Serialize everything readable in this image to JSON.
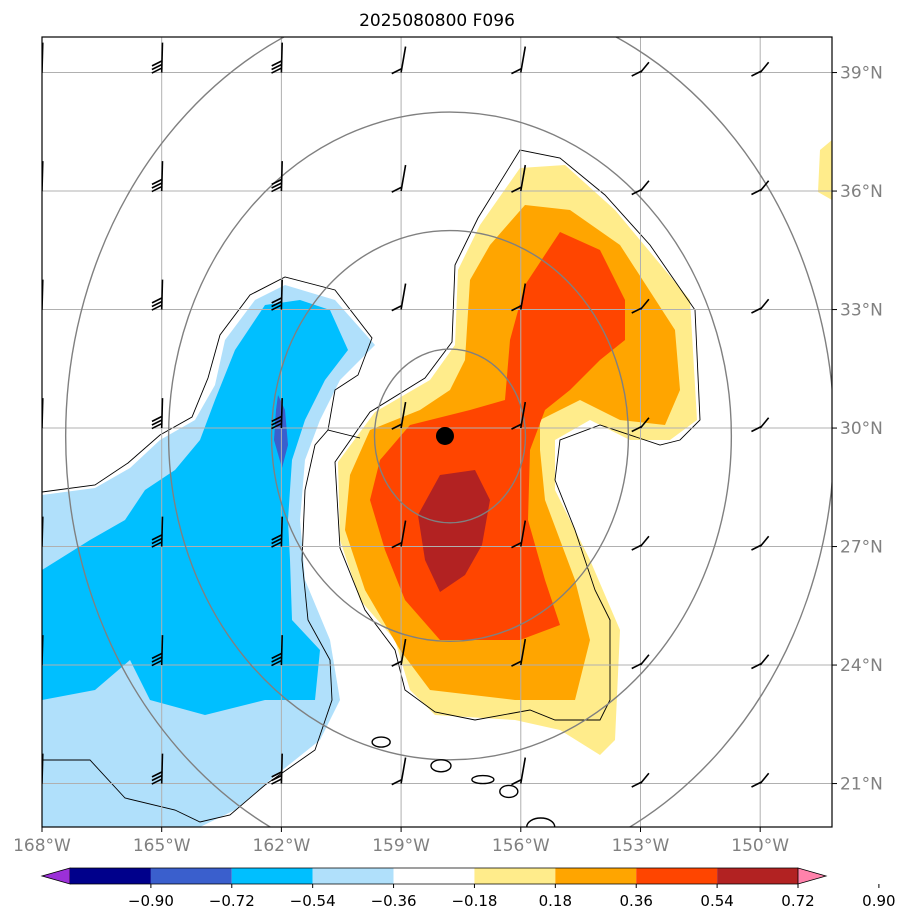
{
  "chart_data": {
    "type": "heatmap",
    "title": "2025080800 F096",
    "xlabel": "",
    "ylabel": "",
    "map": {
      "lon_range": [
        -168.0,
        -148.2
      ],
      "lat_range": [
        19.9,
        39.9
      ],
      "x_ticks": [
        "168°W",
        "165°W",
        "162°W",
        "159°W",
        "156°W",
        "153°W",
        "150°W"
      ],
      "x_tick_values": [
        -168,
        -165,
        -162,
        -159,
        -156,
        -153,
        -150
      ],
      "y_ticks": [
        "39°N",
        "36°N",
        "33°N",
        "30°N",
        "27°N",
        "24°N",
        "21°N"
      ],
      "y_tick_values": [
        39,
        36,
        33,
        30,
        27,
        24,
        21
      ],
      "grid": true
    },
    "center_marker": {
      "lon": -157.9,
      "lat": 29.8,
      "color": "#000000"
    },
    "range_rings_center": {
      "lon": -157.9,
      "lat": 29.8
    },
    "range_rings_deg": [
      2.2,
      5.2,
      8.2,
      11.2
    ],
    "colorbar": {
      "ticks": [
        "−0.90",
        "−0.72",
        "−0.54",
        "−0.36",
        "−0.18",
        "0.18",
        "0.36",
        "0.54",
        "0.72",
        "0.90"
      ],
      "bins": [
        {
          "color": "#9b30d8"
        },
        {
          "color": "#00008b"
        },
        {
          "color": "#3a5fcd"
        },
        {
          "color": "#00bfff"
        },
        {
          "color": "#b0e0fb"
        },
        {
          "color": "#ffffff"
        },
        {
          "color": "#ffec8b"
        },
        {
          "color": "#ffa500"
        },
        {
          "color": "#ff4500"
        },
        {
          "color": "#b22222"
        },
        {
          "color": "#ff82ab"
        }
      ]
    },
    "contour_colors": {
      "neg1": "#b0e0fb",
      "neg2": "#00bfff",
      "neg3": "#3a5fcd",
      "pos1": "#ffec8b",
      "pos2": "#ffa500",
      "pos3": "#ff4500",
      "pos4": "#b22222"
    },
    "wind_barbs": {
      "lons": [
        -168,
        -165,
        -162,
        -159,
        -156,
        -153,
        -150
      ],
      "lats": [
        39,
        36,
        33,
        30,
        27,
        24,
        21
      ]
    },
    "islands": [
      {
        "name": "",
        "lon": -159.5,
        "lat": 22.05
      },
      {
        "name": "",
        "lon": -158.0,
        "lat": 21.45
      },
      {
        "name": "",
        "lon": -156.95,
        "lat": 21.1
      },
      {
        "name": "",
        "lon": -156.3,
        "lat": 20.8
      },
      {
        "name": "",
        "lon": -155.5,
        "lat": 19.9
      }
    ]
  }
}
